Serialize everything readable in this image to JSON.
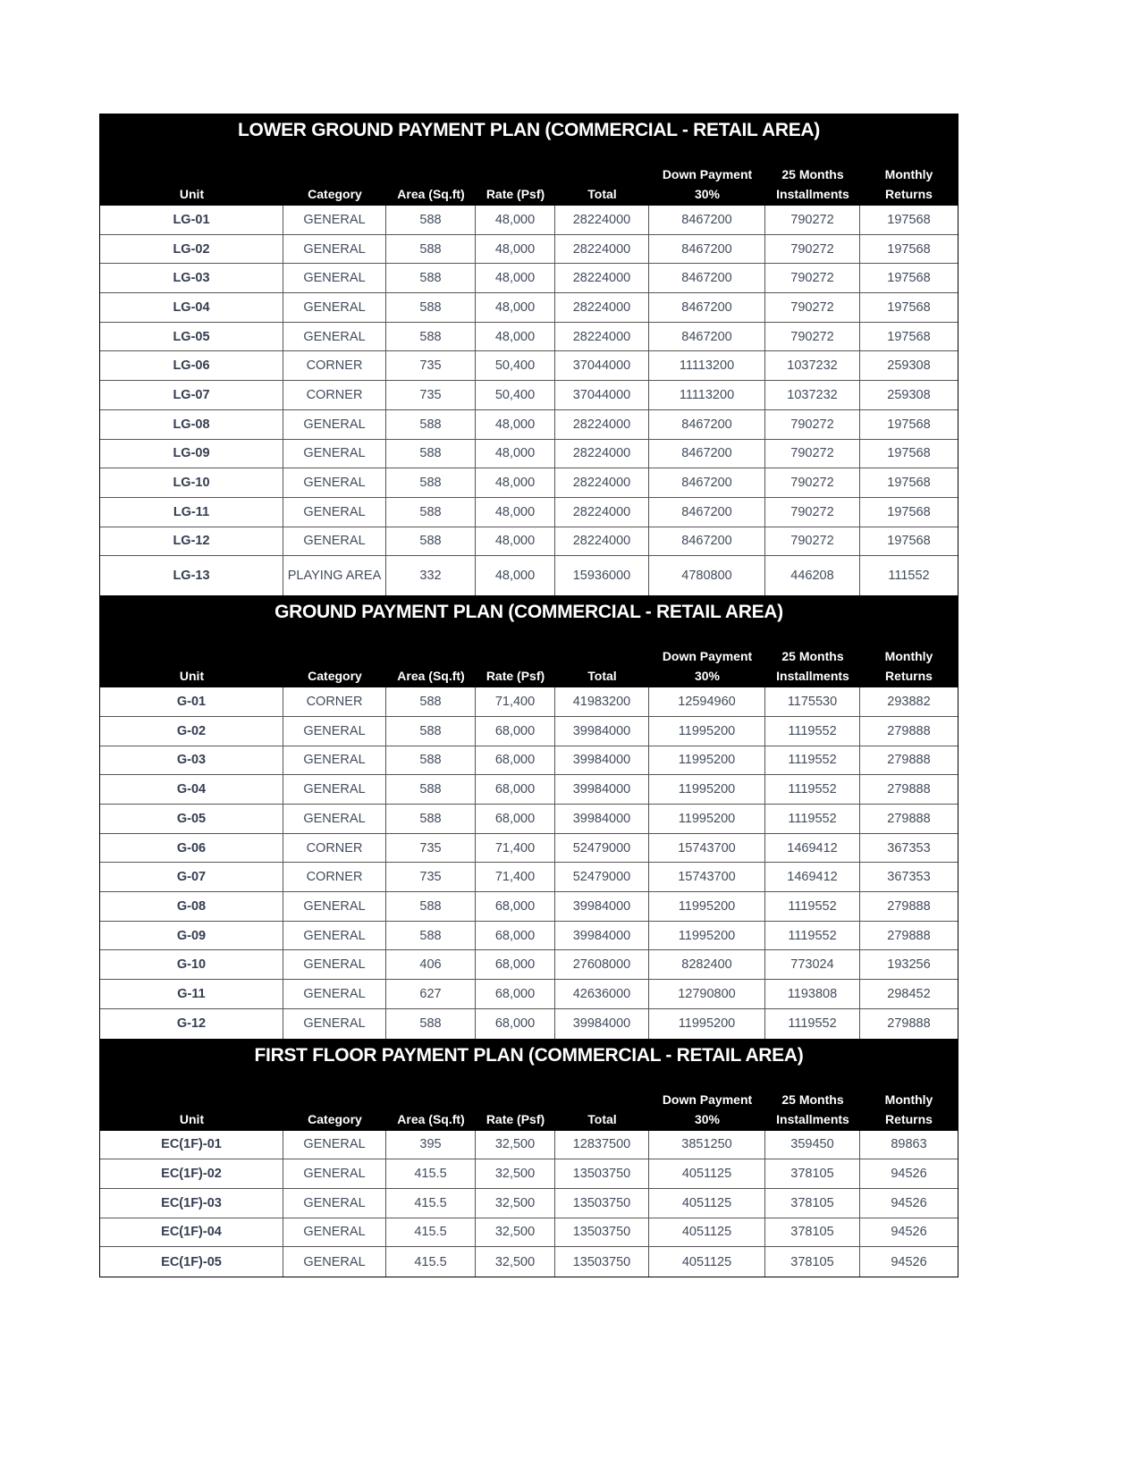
{
  "columns": [
    "Unit",
    "Category",
    "Area (Sq.ft)",
    "Rate (Psf)",
    "Total",
    "Down Payment\n30%",
    "25 Months\nInstallments",
    "Monthly\nReturns"
  ],
  "sections": [
    {
      "title": "LOWER GROUND PAYMENT PLAN (COMMERCIAL - RETAIL AREA)",
      "rows": [
        [
          "LG-01",
          "GENERAL",
          "588",
          "48,000",
          "28224000",
          "8467200",
          "790272",
          "197568"
        ],
        [
          "LG-02",
          "GENERAL",
          "588",
          "48,000",
          "28224000",
          "8467200",
          "790272",
          "197568"
        ],
        [
          "LG-03",
          "GENERAL",
          "588",
          "48,000",
          "28224000",
          "8467200",
          "790272",
          "197568"
        ],
        [
          "LG-04",
          "GENERAL",
          "588",
          "48,000",
          "28224000",
          "8467200",
          "790272",
          "197568"
        ],
        [
          "LG-05",
          "GENERAL",
          "588",
          "48,000",
          "28224000",
          "8467200",
          "790272",
          "197568"
        ],
        [
          "LG-06",
          "CORNER",
          "735",
          "50,400",
          "37044000",
          "11113200",
          "1037232",
          "259308"
        ],
        [
          "LG-07",
          "CORNER",
          "735",
          "50,400",
          "37044000",
          "11113200",
          "1037232",
          "259308"
        ],
        [
          "LG-08",
          "GENERAL",
          "588",
          "48,000",
          "28224000",
          "8467200",
          "790272",
          "197568"
        ],
        [
          "LG-09",
          "GENERAL",
          "588",
          "48,000",
          "28224000",
          "8467200",
          "790272",
          "197568"
        ],
        [
          "LG-10",
          "GENERAL",
          "588",
          "48,000",
          "28224000",
          "8467200",
          "790272",
          "197568"
        ],
        [
          "LG-11",
          "GENERAL",
          "588",
          "48,000",
          "28224000",
          "8467200",
          "790272",
          "197568"
        ],
        [
          "LG-12",
          "GENERAL",
          "588",
          "48,000",
          "28224000",
          "8467200",
          "790272",
          "197568"
        ],
        [
          "LG-13",
          "PLAYING AREA",
          "332",
          "48,000",
          "15936000",
          "4780800",
          "446208",
          "111552"
        ]
      ]
    },
    {
      "title": "GROUND PAYMENT PLAN (COMMERCIAL - RETAIL AREA)",
      "rows": [
        [
          "G-01",
          "CORNER",
          "588",
          "71,400",
          "41983200",
          "12594960",
          "1175530",
          "293882"
        ],
        [
          "G-02",
          "GENERAL",
          "588",
          "68,000",
          "39984000",
          "11995200",
          "1119552",
          "279888"
        ],
        [
          "G-03",
          "GENERAL",
          "588",
          "68,000",
          "39984000",
          "11995200",
          "1119552",
          "279888"
        ],
        [
          "G-04",
          "GENERAL",
          "588",
          "68,000",
          "39984000",
          "11995200",
          "1119552",
          "279888"
        ],
        [
          "G-05",
          "GENERAL",
          "588",
          "68,000",
          "39984000",
          "11995200",
          "1119552",
          "279888"
        ],
        [
          "G-06",
          "CORNER",
          "735",
          "71,400",
          "52479000",
          "15743700",
          "1469412",
          "367353"
        ],
        [
          "G-07",
          "CORNER",
          "735",
          "71,400",
          "52479000",
          "15743700",
          "1469412",
          "367353"
        ],
        [
          "G-08",
          "GENERAL",
          "588",
          "68,000",
          "39984000",
          "11995200",
          "1119552",
          "279888"
        ],
        [
          "G-09",
          "GENERAL",
          "588",
          "68,000",
          "39984000",
          "11995200",
          "1119552",
          "279888"
        ],
        [
          "G-10",
          "GENERAL",
          "406",
          "68,000",
          "27608000",
          "8282400",
          "773024",
          "193256"
        ],
        [
          "G-11",
          "GENERAL",
          "627",
          "68,000",
          "42636000",
          "12790800",
          "1193808",
          "298452"
        ],
        [
          "G-12",
          "GENERAL",
          "588",
          "68,000",
          "39984000",
          "11995200",
          "1119552",
          "279888"
        ]
      ]
    },
    {
      "title": "FIRST FLOOR PAYMENT PLAN (COMMERCIAL - RETAIL AREA)",
      "rows": [
        [
          "EC(1F)-01",
          "GENERAL",
          "395",
          "32,500",
          "12837500",
          "3851250",
          "359450",
          "89863"
        ],
        [
          "EC(1F)-02",
          "GENERAL",
          "415.5",
          "32,500",
          "13503750",
          "4051125",
          "378105",
          "94526"
        ],
        [
          "EC(1F)-03",
          "GENERAL",
          "415.5",
          "32,500",
          "13503750",
          "4051125",
          "378105",
          "94526"
        ],
        [
          "EC(1F)-04",
          "GENERAL",
          "415.5",
          "32,500",
          "13503750",
          "4051125",
          "378105",
          "94526"
        ],
        [
          "EC(1F)-05",
          "GENERAL",
          "415.5",
          "32,500",
          "13503750",
          "4051125",
          "378105",
          "94526"
        ]
      ]
    }
  ]
}
